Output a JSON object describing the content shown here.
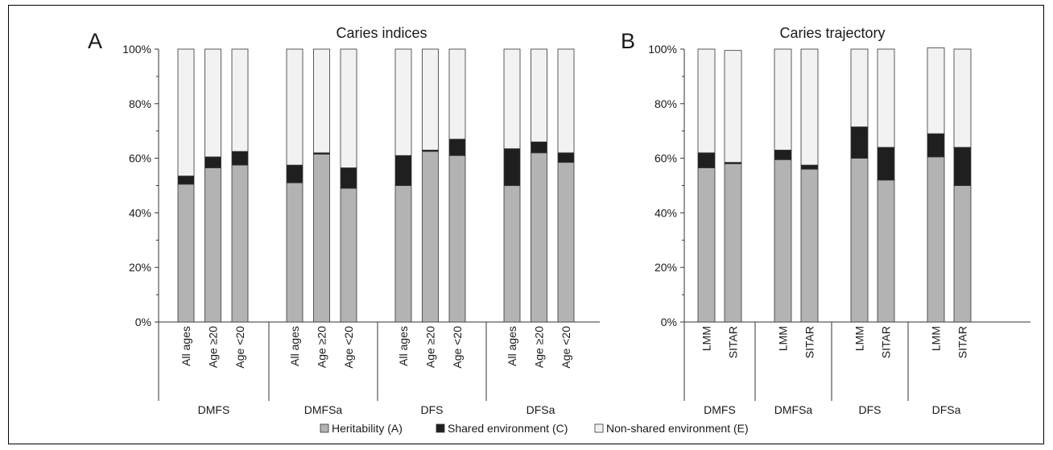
{
  "legend": {
    "items": [
      {
        "label": "Heritability (A)",
        "color": "#b3b3b3"
      },
      {
        "label": "Shared environment (C)",
        "color": "#1f1f1f"
      },
      {
        "label": "Non-shared environment (E)",
        "color": "#f2f2f2"
      }
    ]
  },
  "chart_data": [
    {
      "type": "bar",
      "stacked": true,
      "panel_letter": "A",
      "title": "Caries indices",
      "ylim": [
        0,
        100
      ],
      "y_ticks": [
        "0%",
        "20%",
        "40%",
        "60%",
        "80%",
        "100%"
      ],
      "groups": [
        {
          "name": "DMFS",
          "bars": [
            {
              "label": "All ages",
              "A": 50.5,
              "C": 3,
              "E": 46.5
            },
            {
              "label": "Age ≥20",
              "A": 56.5,
              "C": 4,
              "E": 39.5
            },
            {
              "label": "Age <20",
              "A": 57.5,
              "C": 5,
              "E": 37.5
            }
          ]
        },
        {
          "name": "DMFSa",
          "bars": [
            {
              "label": "All ages",
              "A": 51,
              "C": 6.5,
              "E": 42.5
            },
            {
              "label": "Age ≥20",
              "A": 61.5,
              "C": 0.5,
              "E": 38
            },
            {
              "label": "Age <20",
              "A": 49,
              "C": 7.5,
              "E": 43.5
            }
          ]
        },
        {
          "name": "DFS",
          "bars": [
            {
              "label": "All ages",
              "A": 50,
              "C": 11,
              "E": 39
            },
            {
              "label": "Age ≥20",
              "A": 62.5,
              "C": 0.5,
              "E": 37
            },
            {
              "label": "Age <20",
              "A": 61,
              "C": 6,
              "E": 33
            }
          ]
        },
        {
          "name": "DFSa",
          "bars": [
            {
              "label": "All ages",
              "A": 50,
              "C": 13.5,
              "E": 36.5
            },
            {
              "label": "Age ≥20",
              "A": 62,
              "C": 4,
              "E": 34
            },
            {
              "label": "Age <20",
              "A": 58.5,
              "C": 3.5,
              "E": 38
            }
          ]
        }
      ]
    },
    {
      "type": "bar",
      "stacked": true,
      "panel_letter": "B",
      "title": "Caries trajectory",
      "ylim": [
        0,
        100
      ],
      "y_ticks": [
        "0%",
        "20%",
        "40%",
        "60%",
        "80%",
        "100%"
      ],
      "groups": [
        {
          "name": "DMFS",
          "bars": [
            {
              "label": "LMM",
              "A": 56.5,
              "C": 5.5,
              "E": 38
            },
            {
              "label": "SITAR",
              "A": 58,
              "C": 0.5,
              "E": 41
            }
          ]
        },
        {
          "name": "DMFSa",
          "bars": [
            {
              "label": "LMM",
              "A": 59.5,
              "C": 3.5,
              "E": 37
            },
            {
              "label": "SITAR",
              "A": 56,
              "C": 1.5,
              "E": 42.5
            }
          ]
        },
        {
          "name": "DFS",
          "bars": [
            {
              "label": "LMM",
              "A": 60,
              "C": 11.5,
              "E": 28.5
            },
            {
              "label": "SITAR",
              "A": 52,
              "C": 12,
              "E": 36
            }
          ]
        },
        {
          "name": "DFSa",
          "bars": [
            {
              "label": "LMM",
              "A": 60.5,
              "C": 8.5,
              "E": 31.5
            },
            {
              "label": "SITAR",
              "A": 50,
              "C": 14,
              "E": 36
            }
          ]
        }
      ]
    }
  ]
}
